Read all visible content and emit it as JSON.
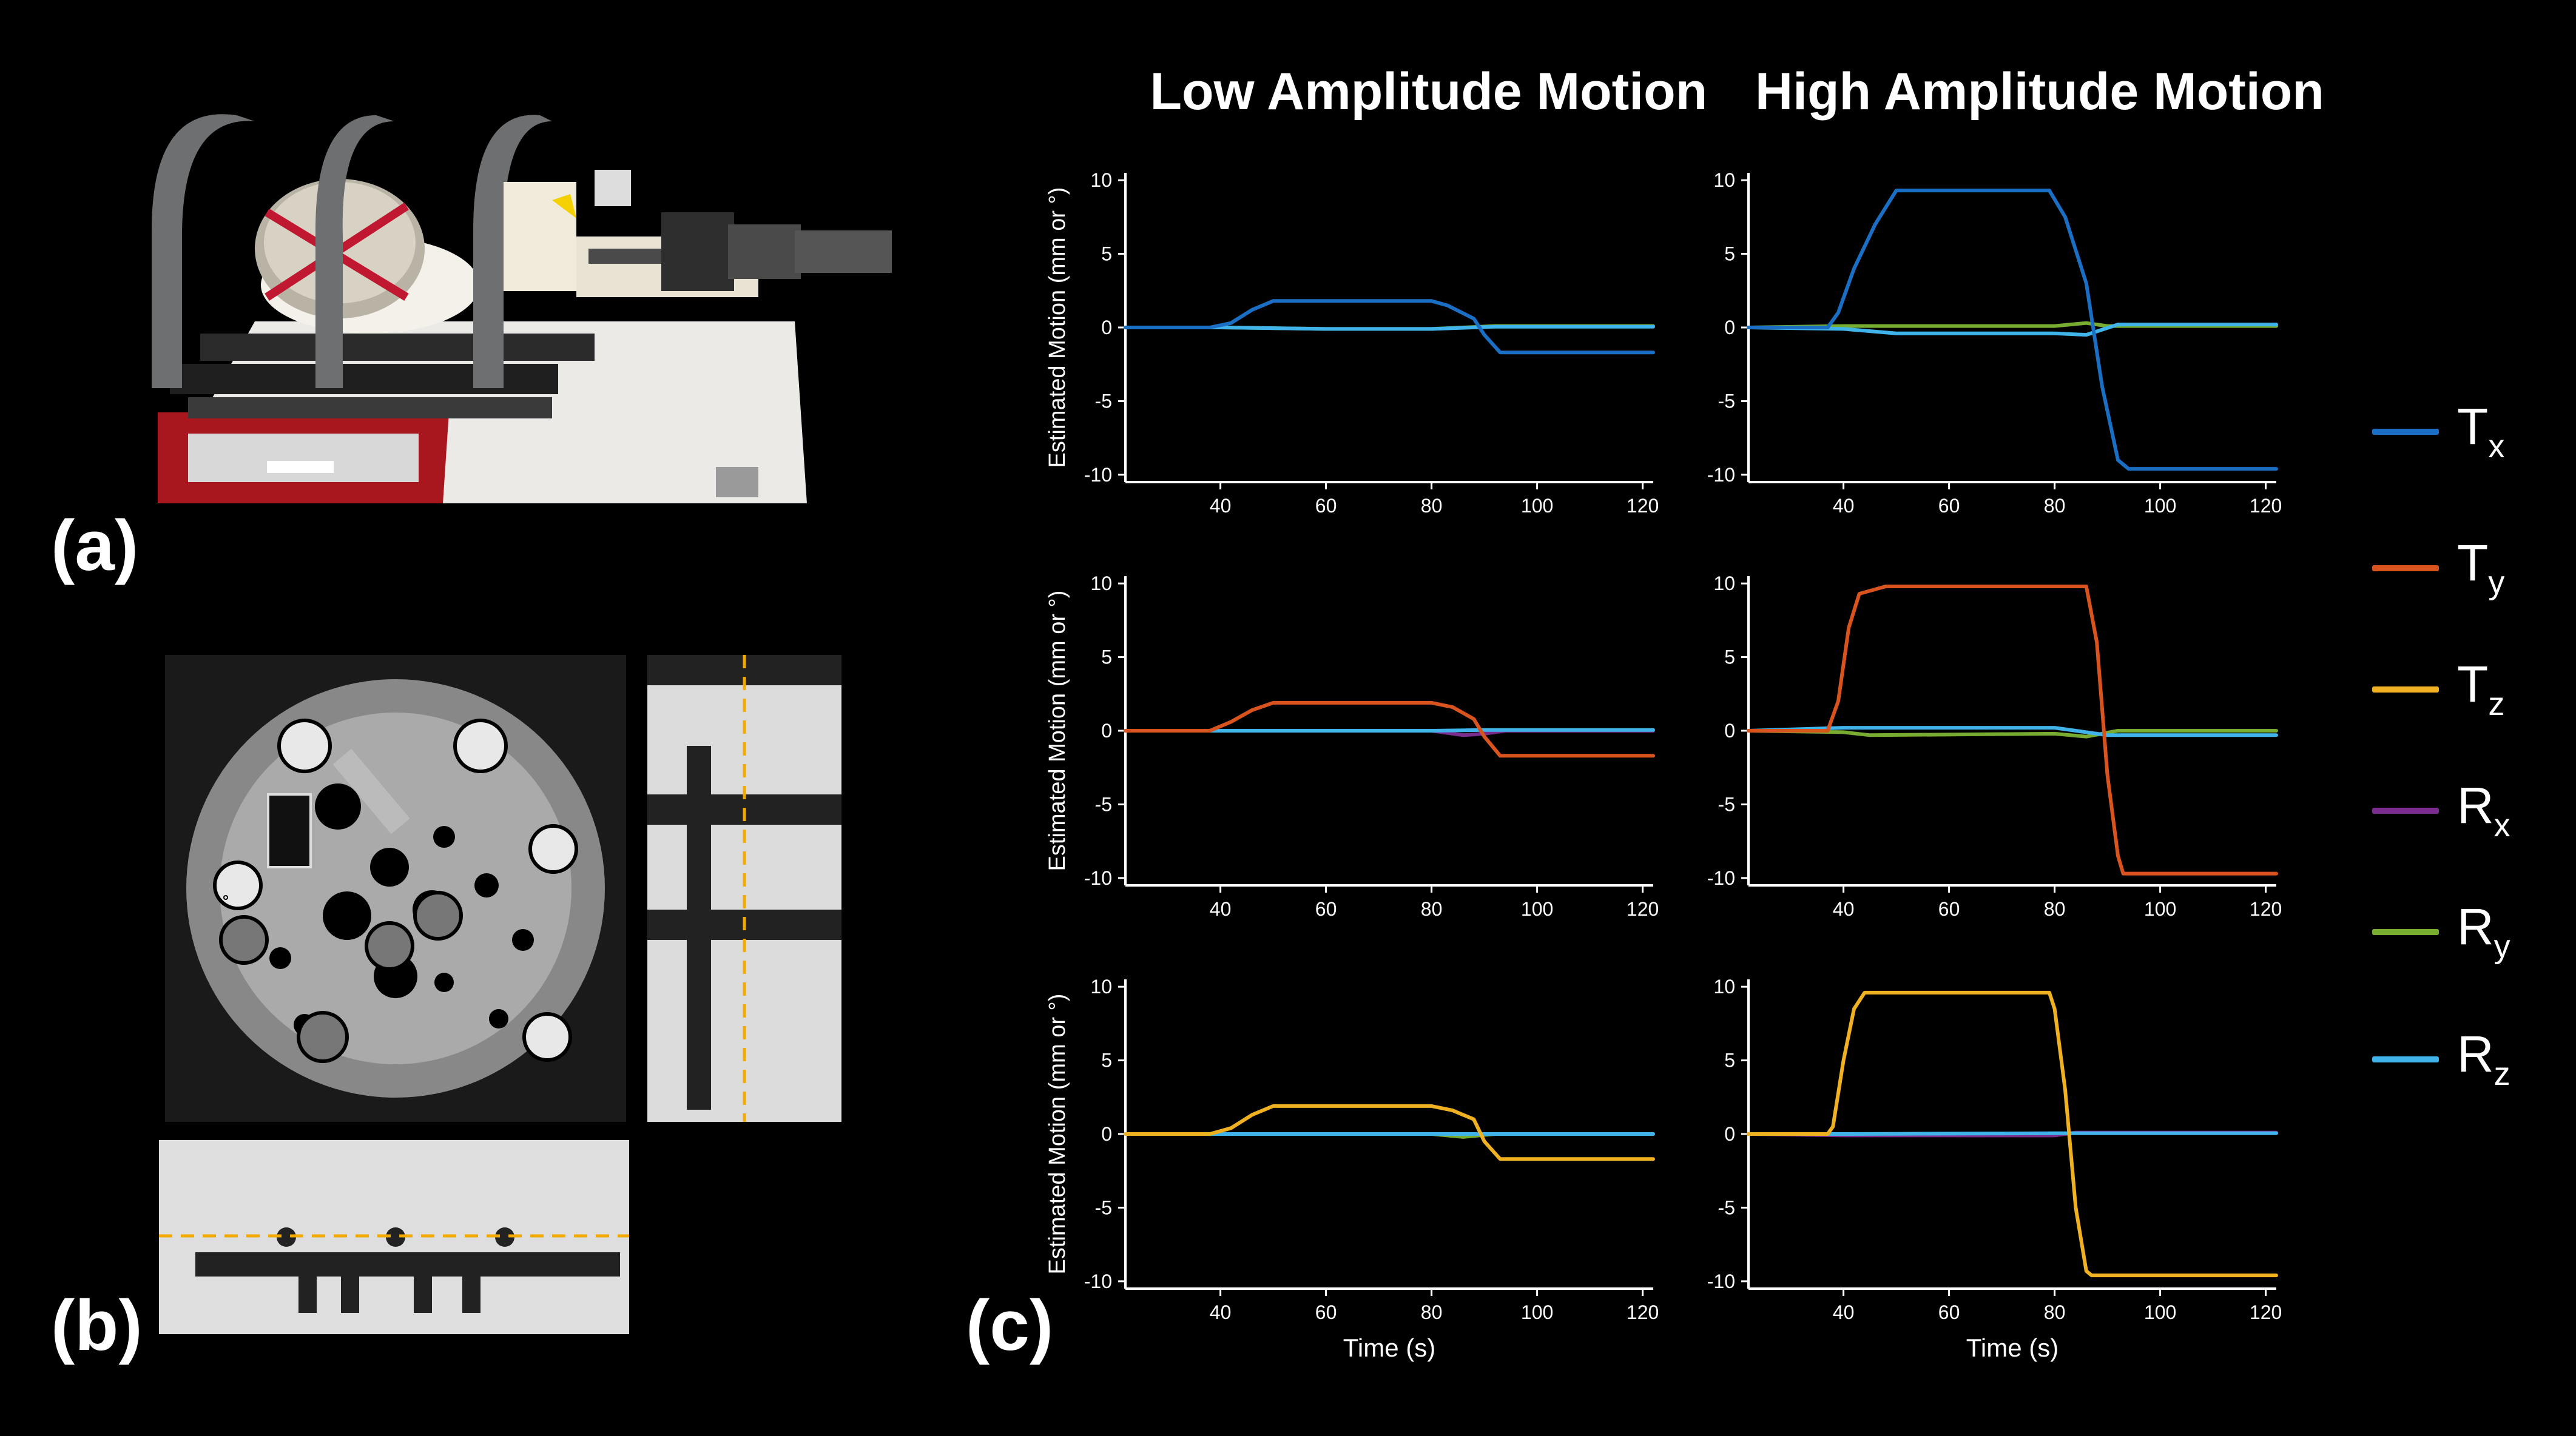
{
  "labels": {
    "a": "(a)",
    "b": "(b)",
    "c": "(c)"
  },
  "column_titles": [
    "Low Amplitude Motion",
    "High Amplitude Motion"
  ],
  "colors": {
    "background": "#000000",
    "Tx": "#1a6fc4",
    "Ty": "#d9531e",
    "Tz": "#efb021",
    "Rx": "#7b2d8e",
    "Ry": "#77ac30",
    "Rz": "#3fb3ea",
    "guide_dash": "#f2a900"
  },
  "legend": [
    {
      "main": "T",
      "sub": "x",
      "color_key": "Tx"
    },
    {
      "main": "T",
      "sub": "y",
      "color_key": "Ty"
    },
    {
      "main": "T",
      "sub": "z",
      "color_key": "Tz"
    },
    {
      "main": "R",
      "sub": "x",
      "color_key": "Rx"
    },
    {
      "main": "R",
      "sub": "y",
      "color_key": "Ry"
    },
    {
      "main": "R",
      "sub": "z",
      "color_key": "Rz"
    }
  ],
  "photos": {
    "a_icon": "motion-stage-photo",
    "b_icon": "phantom-mri-slices"
  },
  "chart_data": [
    {
      "type": "line",
      "panel": "Tx-low",
      "ylabel": "Estimated Motion (mm or °)",
      "xlabel": "",
      "xlim": [
        22,
        122
      ],
      "ylim": [
        -10.5,
        10.5
      ],
      "xticks": [
        40,
        60,
        80,
        100,
        120
      ],
      "yticks": [
        -10,
        -5,
        0,
        5,
        10
      ],
      "series": [
        {
          "key": "Ry",
          "points": [
            [
              22,
              0
            ],
            [
              40,
              0
            ],
            [
              60,
              -0.1
            ],
            [
              80,
              -0.1
            ],
            [
              92,
              0.1
            ],
            [
              122,
              0.1
            ]
          ]
        },
        {
          "key": "Rz",
          "points": [
            [
              22,
              0
            ],
            [
              40,
              0
            ],
            [
              60,
              -0.1
            ],
            [
              80,
              -0.1
            ],
            [
              92,
              0.05
            ],
            [
              122,
              0.05
            ]
          ]
        },
        {
          "key": "Tx",
          "points": [
            [
              22,
              0
            ],
            [
              38,
              0
            ],
            [
              42,
              0.3
            ],
            [
              46,
              1.2
            ],
            [
              50,
              1.8
            ],
            [
              80,
              1.8
            ],
            [
              83,
              1.5
            ],
            [
              88,
              0.6
            ],
            [
              90,
              -0.5
            ],
            [
              93,
              -1.7
            ],
            [
              122,
              -1.7
            ]
          ]
        }
      ]
    },
    {
      "type": "line",
      "panel": "Tx-high",
      "ylabel": "",
      "xlabel": "",
      "xlim": [
        22,
        122
      ],
      "ylim": [
        -10.5,
        10.5
      ],
      "xticks": [
        40,
        60,
        80,
        100,
        120
      ],
      "yticks": [
        -10,
        -5,
        0,
        5,
        10
      ],
      "series": [
        {
          "key": "Ry",
          "points": [
            [
              22,
              0
            ],
            [
              40,
              0.1
            ],
            [
              60,
              0.1
            ],
            [
              80,
              0.1
            ],
            [
              86,
              0.3
            ],
            [
              90,
              0.1
            ],
            [
              122,
              0.1
            ]
          ]
        },
        {
          "key": "Rz",
          "points": [
            [
              22,
              0
            ],
            [
              40,
              -0.1
            ],
            [
              50,
              -0.4
            ],
            [
              80,
              -0.4
            ],
            [
              86,
              -0.5
            ],
            [
              92,
              0.2
            ],
            [
              122,
              0.2
            ]
          ]
        },
        {
          "key": "Tx",
          "points": [
            [
              22,
              0
            ],
            [
              37,
              0
            ],
            [
              39,
              1
            ],
            [
              42,
              4
            ],
            [
              46,
              7
            ],
            [
              50,
              9.3
            ],
            [
              79,
              9.3
            ],
            [
              82,
              7.5
            ],
            [
              86,
              3
            ],
            [
              89,
              -4
            ],
            [
              92,
              -9
            ],
            [
              94,
              -9.6
            ],
            [
              122,
              -9.6
            ]
          ]
        }
      ]
    },
    {
      "type": "line",
      "panel": "Ty-low",
      "ylabel": "Estimated Motion (mm or °)",
      "xlabel": "",
      "xlim": [
        22,
        122
      ],
      "ylim": [
        -10.5,
        10.5
      ],
      "xticks": [
        40,
        60,
        80,
        100,
        120
      ],
      "yticks": [
        -10,
        -5,
        0,
        5,
        10
      ],
      "series": [
        {
          "key": "Rx",
          "points": [
            [
              22,
              0
            ],
            [
              80,
              0
            ],
            [
              86,
              -0.3
            ],
            [
              90,
              -0.2
            ],
            [
              94,
              0
            ],
            [
              122,
              0
            ]
          ]
        },
        {
          "key": "Rz",
          "points": [
            [
              22,
              0
            ],
            [
              80,
              0
            ],
            [
              90,
              0.05
            ],
            [
              122,
              0.05
            ]
          ]
        },
        {
          "key": "Ty",
          "points": [
            [
              22,
              0
            ],
            [
              38,
              0
            ],
            [
              42,
              0.6
            ],
            [
              46,
              1.4
            ],
            [
              50,
              1.9
            ],
            [
              80,
              1.9
            ],
            [
              84,
              1.6
            ],
            [
              88,
              0.8
            ],
            [
              90,
              -0.4
            ],
            [
              93,
              -1.7
            ],
            [
              122,
              -1.7
            ]
          ]
        }
      ]
    },
    {
      "type": "line",
      "panel": "Ty-high",
      "ylabel": "",
      "xlabel": "",
      "xlim": [
        22,
        122
      ],
      "ylim": [
        -10.5,
        10.5
      ],
      "xticks": [
        40,
        60,
        80,
        100,
        120
      ],
      "yticks": [
        -10,
        -5,
        0,
        5,
        10
      ],
      "series": [
        {
          "key": "Ry",
          "points": [
            [
              22,
              0
            ],
            [
              40,
              -0.1
            ],
            [
              45,
              -0.3
            ],
            [
              80,
              -0.2
            ],
            [
              86,
              -0.4
            ],
            [
              92,
              0
            ],
            [
              122,
              0
            ]
          ]
        },
        {
          "key": "Rz",
          "points": [
            [
              22,
              0
            ],
            [
              40,
              0.2
            ],
            [
              50,
              0.2
            ],
            [
              80,
              0.2
            ],
            [
              90,
              -0.3
            ],
            [
              122,
              -0.3
            ]
          ]
        },
        {
          "key": "Ty",
          "points": [
            [
              22,
              0
            ],
            [
              37,
              0
            ],
            [
              39,
              2
            ],
            [
              41,
              7
            ],
            [
              43,
              9.3
            ],
            [
              48,
              9.8
            ],
            [
              86,
              9.8
            ],
            [
              88,
              6
            ],
            [
              90,
              -3
            ],
            [
              92,
              -8.5
            ],
            [
              93,
              -9.7
            ],
            [
              122,
              -9.7
            ]
          ]
        }
      ]
    },
    {
      "type": "line",
      "panel": "Tz-low",
      "ylabel": "Estimated Motion (mm or °)",
      "xlabel": "Time (s)",
      "xlim": [
        22,
        122
      ],
      "ylim": [
        -10.5,
        10.5
      ],
      "xticks": [
        40,
        60,
        80,
        100,
        120
      ],
      "yticks": [
        -10,
        -5,
        0,
        5,
        10
      ],
      "series": [
        {
          "key": "Ry",
          "points": [
            [
              22,
              0
            ],
            [
              40,
              0
            ],
            [
              80,
              0
            ],
            [
              86,
              -0.2
            ],
            [
              92,
              0
            ],
            [
              122,
              0
            ]
          ]
        },
        {
          "key": "Rz",
          "points": [
            [
              22,
              0
            ],
            [
              80,
              0
            ],
            [
              122,
              0
            ]
          ]
        },
        {
          "key": "Tz",
          "points": [
            [
              22,
              0
            ],
            [
              38,
              0
            ],
            [
              42,
              0.4
            ],
            [
              46,
              1.3
            ],
            [
              50,
              1.9
            ],
            [
              80,
              1.9
            ],
            [
              84,
              1.6
            ],
            [
              88,
              1
            ],
            [
              90,
              -0.5
            ],
            [
              93,
              -1.7
            ],
            [
              122,
              -1.7
            ]
          ]
        }
      ]
    },
    {
      "type": "line",
      "panel": "Tz-high",
      "ylabel": "",
      "xlabel": "Time (s)",
      "xlim": [
        22,
        122
      ],
      "ylim": [
        -10.5,
        10.5
      ],
      "xticks": [
        40,
        60,
        80,
        100,
        120
      ],
      "yticks": [
        -10,
        -5,
        0,
        5,
        10
      ],
      "series": [
        {
          "key": "Rx",
          "points": [
            [
              22,
              0
            ],
            [
              40,
              -0.1
            ],
            [
              80,
              -0.1
            ],
            [
              84,
              0.1
            ],
            [
              122,
              0.1
            ]
          ]
        },
        {
          "key": "Rz",
          "points": [
            [
              22,
              0
            ],
            [
              40,
              0
            ],
            [
              80,
              0.05
            ],
            [
              122,
              0.05
            ]
          ]
        },
        {
          "key": "Tz",
          "points": [
            [
              22,
              0
            ],
            [
              37,
              0
            ],
            [
              38,
              0.5
            ],
            [
              40,
              5
            ],
            [
              42,
              8.5
            ],
            [
              44,
              9.6
            ],
            [
              79,
              9.6
            ],
            [
              80,
              8.5
            ],
            [
              82,
              3
            ],
            [
              84,
              -5
            ],
            [
              86,
              -9.3
            ],
            [
              87,
              -9.6
            ],
            [
              122,
              -9.6
            ]
          ]
        }
      ]
    }
  ]
}
